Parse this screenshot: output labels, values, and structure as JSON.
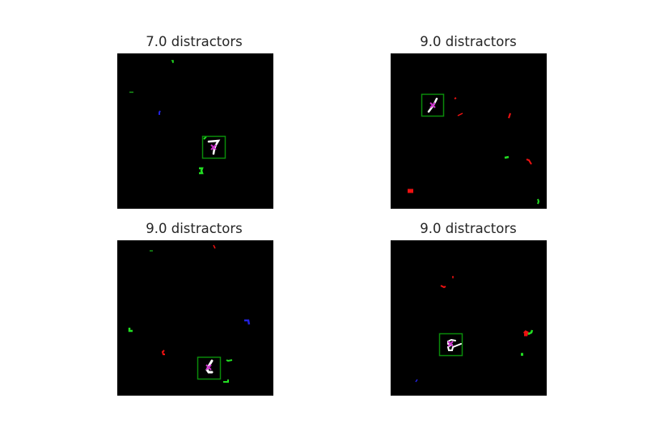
{
  "panels": [
    {
      "title": "7.0 distractors"
    },
    {
      "title": "9.0 distractors"
    },
    {
      "title": "9.0 distractors"
    },
    {
      "title": "9.0 distractors"
    }
  ],
  "colors": {
    "background": "#000000",
    "target_box": "#0a8a0a",
    "digit": "#ffffff",
    "marker": "#cc33cc",
    "distractor_green": "#22dd22",
    "distractor_red": "#ee1111",
    "distractor_blue": "#2222dd"
  }
}
